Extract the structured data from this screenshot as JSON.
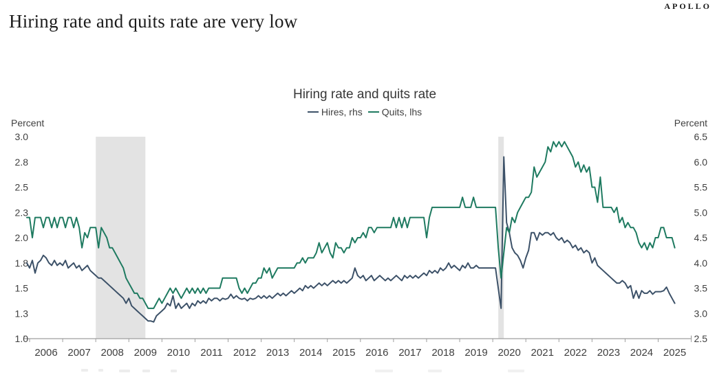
{
  "header": {
    "title": "Hiring rate and quits rate are very low",
    "brand": "APOLLO"
  },
  "chart_data": {
    "type": "line",
    "title": "Hiring rate and quits rate",
    "x_start": "2005-12",
    "x_end": "2025-07",
    "x_frequency": "monthly",
    "x_year_labels": [
      "2006",
      "2007",
      "2008",
      "2009",
      "2010",
      "2011",
      "2012",
      "2013",
      "2014",
      "2015",
      "2016",
      "2017",
      "2018",
      "2019",
      "2020",
      "2021",
      "2022",
      "2023",
      "2024",
      "2025"
    ],
    "left_axis": {
      "label": "Percent",
      "min": 1.0,
      "max": 3.0,
      "tick_labels": [
        "3.0",
        "2.8",
        "2.5",
        "2.3",
        "2.0",
        "1.8",
        "1.5",
        "1.3",
        "1.0"
      ],
      "tick_values": [
        3.0,
        2.75,
        2.5,
        2.25,
        2.0,
        1.75,
        1.5,
        1.25,
        1.0
      ]
    },
    "right_axis": {
      "label": "Percent",
      "min": 2.5,
      "max": 6.5,
      "tick_labels": [
        "6.5",
        "6.0",
        "5.5",
        "5.0",
        "4.5",
        "4.0",
        "3.5",
        "3.0",
        "2.5"
      ],
      "tick_values": [
        6.5,
        6.0,
        5.5,
        5.0,
        4.5,
        4.0,
        3.5,
        3.0,
        2.5
      ]
    },
    "grid": false,
    "legend_position": "top-center",
    "recession_bands": [
      {
        "start": "2008-01",
        "end": "2009-07"
      },
      {
        "start": "2020-03",
        "end": "2020-05"
      }
    ],
    "series": [
      {
        "name": "Hires, rhs",
        "axis": "right",
        "color": "#3c5168",
        "values": [
          4.0,
          3.9,
          4.05,
          3.8,
          4.0,
          4.05,
          4.15,
          4.1,
          4.0,
          3.95,
          4.05,
          3.95,
          4.0,
          3.95,
          4.05,
          3.9,
          3.95,
          4.0,
          3.9,
          3.95,
          3.85,
          3.9,
          3.95,
          3.85,
          3.8,
          3.75,
          3.7,
          3.7,
          3.65,
          3.6,
          3.55,
          3.5,
          3.45,
          3.4,
          3.35,
          3.3,
          3.2,
          3.3,
          3.15,
          3.1,
          3.05,
          3.0,
          2.95,
          2.9,
          2.85,
          2.85,
          2.83,
          2.95,
          3.0,
          3.05,
          3.1,
          3.2,
          3.15,
          3.35,
          3.1,
          3.2,
          3.1,
          3.15,
          3.2,
          3.1,
          3.2,
          3.15,
          3.25,
          3.2,
          3.25,
          3.2,
          3.3,
          3.25,
          3.3,
          3.3,
          3.25,
          3.3,
          3.28,
          3.3,
          3.38,
          3.3,
          3.35,
          3.3,
          3.28,
          3.3,
          3.25,
          3.3,
          3.28,
          3.3,
          3.35,
          3.3,
          3.35,
          3.3,
          3.35,
          3.3,
          3.35,
          3.4,
          3.35,
          3.4,
          3.35,
          3.4,
          3.45,
          3.4,
          3.45,
          3.5,
          3.45,
          3.55,
          3.5,
          3.55,
          3.5,
          3.55,
          3.6,
          3.55,
          3.6,
          3.55,
          3.6,
          3.65,
          3.6,
          3.65,
          3.6,
          3.65,
          3.6,
          3.65,
          3.7,
          3.9,
          3.75,
          3.7,
          3.75,
          3.65,
          3.7,
          3.75,
          3.65,
          3.7,
          3.75,
          3.7,
          3.65,
          3.7,
          3.65,
          3.7,
          3.75,
          3.7,
          3.65,
          3.75,
          3.7,
          3.75,
          3.7,
          3.75,
          3.7,
          3.75,
          3.8,
          3.75,
          3.85,
          3.8,
          3.85,
          3.8,
          3.9,
          3.85,
          3.9,
          4.0,
          3.9,
          3.95,
          3.9,
          3.85,
          3.95,
          3.9,
          4.0,
          3.9,
          3.9,
          3.95,
          3.9,
          3.9,
          3.9,
          3.9,
          3.9,
          3.9,
          3.9,
          3.5,
          3.1,
          6.1,
          4.8,
          4.6,
          4.3,
          4.2,
          4.15,
          4.05,
          3.9,
          4.1,
          4.25,
          4.6,
          4.6,
          4.45,
          4.6,
          4.55,
          4.6,
          4.6,
          4.55,
          4.6,
          4.5,
          4.45,
          4.5,
          4.4,
          4.45,
          4.4,
          4.3,
          4.35,
          4.25,
          4.3,
          4.2,
          4.25,
          4.2,
          4.0,
          4.1,
          3.95,
          3.9,
          3.85,
          3.8,
          3.75,
          3.7,
          3.65,
          3.6,
          3.6,
          3.65,
          3.6,
          3.5,
          3.55,
          3.3,
          3.45,
          3.3,
          3.45,
          3.4,
          3.4,
          3.45,
          3.38,
          3.43,
          3.43,
          3.43,
          3.45,
          3.52,
          3.4,
          3.3,
          3.2
        ]
      },
      {
        "name": "Quits, lhs",
        "axis": "left",
        "color": "#1e7a60",
        "values": [
          2.2,
          2.2,
          2.0,
          2.2,
          2.2,
          2.2,
          2.1,
          2.2,
          2.2,
          2.1,
          2.2,
          2.1,
          2.2,
          2.2,
          2.1,
          2.2,
          2.2,
          2.1,
          2.2,
          2.1,
          1.9,
          2.05,
          2.0,
          2.1,
          2.1,
          2.1,
          1.9,
          2.1,
          2.05,
          2.0,
          1.9,
          1.9,
          1.85,
          1.8,
          1.75,
          1.7,
          1.6,
          1.55,
          1.5,
          1.45,
          1.45,
          1.4,
          1.4,
          1.35,
          1.3,
          1.3,
          1.3,
          1.35,
          1.4,
          1.35,
          1.4,
          1.45,
          1.5,
          1.45,
          1.5,
          1.45,
          1.4,
          1.45,
          1.5,
          1.45,
          1.5,
          1.45,
          1.5,
          1.45,
          1.5,
          1.45,
          1.5,
          1.5,
          1.5,
          1.5,
          1.5,
          1.6,
          1.6,
          1.6,
          1.6,
          1.6,
          1.6,
          1.5,
          1.45,
          1.5,
          1.45,
          1.5,
          1.55,
          1.55,
          1.6,
          1.6,
          1.7,
          1.65,
          1.7,
          1.6,
          1.65,
          1.7,
          1.7,
          1.7,
          1.7,
          1.7,
          1.7,
          1.7,
          1.75,
          1.75,
          1.8,
          1.75,
          1.8,
          1.8,
          1.8,
          1.85,
          1.95,
          1.85,
          1.9,
          1.95,
          1.85,
          1.8,
          1.95,
          1.9,
          1.9,
          1.85,
          1.9,
          1.9,
          2.0,
          1.95,
          2.0,
          2.0,
          2.05,
          2.0,
          2.1,
          2.1,
          2.05,
          2.1,
          2.1,
          2.1,
          2.1,
          2.1,
          2.1,
          2.2,
          2.1,
          2.2,
          2.1,
          2.2,
          2.1,
          2.2,
          2.2,
          2.2,
          2.2,
          2.2,
          2.2,
          2.0,
          2.2,
          2.3,
          2.3,
          2.3,
          2.3,
          2.3,
          2.3,
          2.3,
          2.3,
          2.3,
          2.3,
          2.3,
          2.4,
          2.3,
          2.3,
          2.3,
          2.4,
          2.3,
          2.3,
          2.3,
          2.3,
          2.3,
          2.3,
          2.3,
          2.3,
          1.9,
          1.6,
          1.85,
          2.1,
          2.05,
          2.2,
          2.15,
          2.25,
          2.3,
          2.35,
          2.4,
          2.4,
          2.45,
          2.7,
          2.6,
          2.65,
          2.7,
          2.75,
          2.9,
          2.85,
          2.95,
          2.9,
          2.95,
          2.9,
          2.95,
          2.9,
          2.85,
          2.8,
          2.7,
          2.75,
          2.65,
          2.72,
          2.65,
          2.7,
          2.5,
          2.5,
          2.35,
          2.6,
          2.3,
          2.3,
          2.3,
          2.3,
          2.25,
          2.3,
          2.15,
          2.2,
          2.1,
          2.15,
          2.1,
          2.1,
          2.05,
          1.95,
          1.9,
          1.95,
          1.88,
          1.95,
          1.9,
          2.0,
          2.0,
          2.1,
          2.1,
          2.0,
          2.0,
          2.0,
          1.9
        ]
      }
    ],
    "colors": {
      "recession_band": "#e3e3e3",
      "axis": "#9e9e9e",
      "tick_text": "#3f3f3f"
    }
  }
}
